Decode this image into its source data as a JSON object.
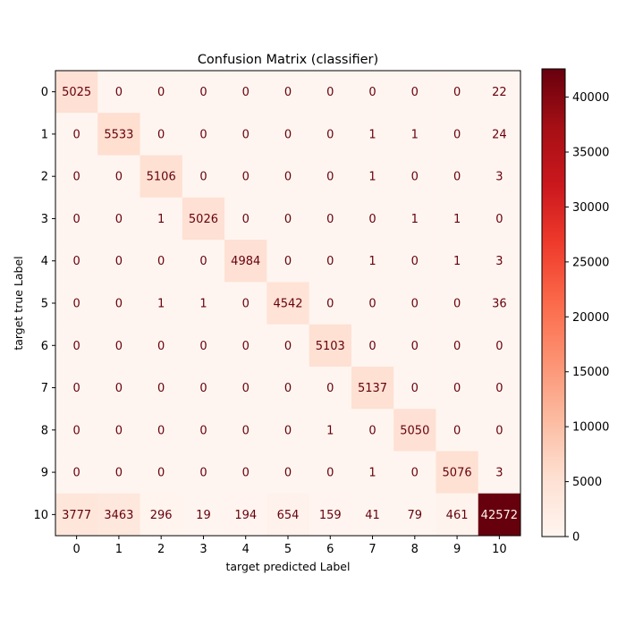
{
  "chart_data": {
    "type": "heatmap",
    "title": "Confusion Matrix (classifier)",
    "xlabel": "target predicted Label",
    "ylabel": "target true Label",
    "x_categories": [
      "0",
      "1",
      "2",
      "3",
      "4",
      "5",
      "6",
      "7",
      "8",
      "9",
      "10"
    ],
    "y_categories": [
      "0",
      "1",
      "2",
      "3",
      "4",
      "5",
      "6",
      "7",
      "8",
      "9",
      "10"
    ],
    "values": [
      [
        5025,
        0,
        0,
        0,
        0,
        0,
        0,
        0,
        0,
        0,
        22
      ],
      [
        0,
        5533,
        0,
        0,
        0,
        0,
        0,
        1,
        1,
        0,
        24
      ],
      [
        0,
        0,
        5106,
        0,
        0,
        0,
        0,
        1,
        0,
        0,
        3
      ],
      [
        0,
        0,
        1,
        5026,
        0,
        0,
        0,
        0,
        1,
        1,
        0
      ],
      [
        0,
        0,
        0,
        0,
        4984,
        0,
        0,
        1,
        0,
        1,
        3
      ],
      [
        0,
        0,
        1,
        1,
        0,
        4542,
        0,
        0,
        0,
        0,
        36
      ],
      [
        0,
        0,
        0,
        0,
        0,
        0,
        5103,
        0,
        0,
        0,
        0
      ],
      [
        0,
        0,
        0,
        0,
        0,
        0,
        0,
        5137,
        0,
        0,
        0
      ],
      [
        0,
        0,
        0,
        0,
        0,
        0,
        1,
        0,
        5050,
        0,
        0
      ],
      [
        0,
        0,
        0,
        0,
        0,
        0,
        0,
        1,
        0,
        5076,
        3
      ],
      [
        3777,
        3463,
        296,
        19,
        194,
        654,
        159,
        41,
        79,
        461,
        42572
      ]
    ],
    "colormap": "Reds",
    "colorbar": {
      "vmin": 0,
      "vmax": 42572,
      "ticks": [
        0,
        5000,
        10000,
        15000,
        20000,
        25000,
        30000,
        35000,
        40000
      ]
    },
    "grid": false
  }
}
